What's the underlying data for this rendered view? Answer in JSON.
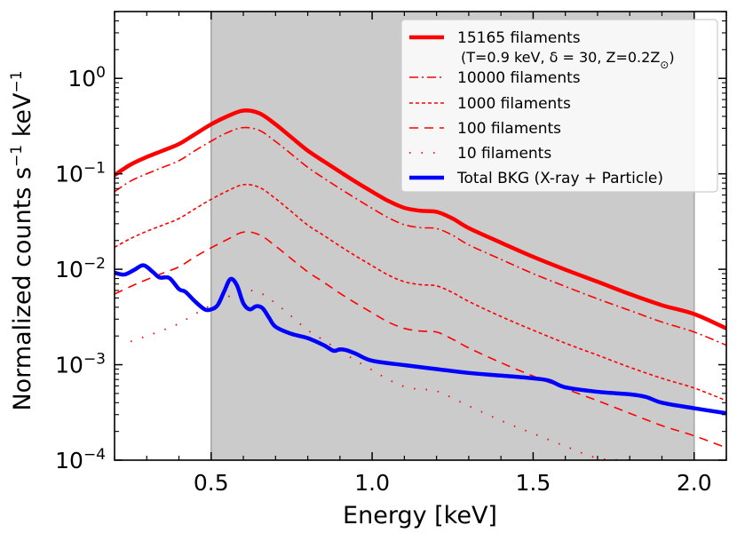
{
  "chart_data": {
    "type": "line",
    "xlabel": "Energy [keV]",
    "ylabel_main": "Normalized  counts s",
    "ylabel_sup1": "−1",
    "ylabel_unit": " keV",
    "ylabel_sup2": "−1",
    "xlim": [
      0.2,
      2.1
    ],
    "ylim_log10": [
      -4,
      0.7
    ],
    "shaded_band": {
      "x_start": 0.5,
      "x_end": 2.0,
      "color": "#cbcbcb"
    },
    "x_ticks": [
      {
        "value": 0.5,
        "label": "0.5"
      },
      {
        "value": 1.0,
        "label": "1.0"
      },
      {
        "value": 1.5,
        "label": "1.5"
      },
      {
        "value": 2.0,
        "label": "2.0"
      }
    ],
    "y_ticks": [
      {
        "exp": 0,
        "base": "10",
        "sup": "0"
      },
      {
        "exp": -1,
        "base": "10",
        "sup": "−1"
      },
      {
        "exp": -2,
        "base": "10",
        "sup": "−2"
      },
      {
        "exp": -3,
        "base": "10",
        "sup": "−3"
      },
      {
        "exp": -4,
        "base": "10",
        "sup": "−4"
      }
    ],
    "series": [
      {
        "name": "15165 filaments",
        "subtitle_prefix": "(T=0.9 keV, δ = 30, Z=0.2Z",
        "subtitle_sub": "⊙",
        "subtitle_suffix": ")",
        "color": "#ff0000",
        "width": 4.5,
        "dash": "",
        "x": [
          0.2,
          0.25,
          0.3,
          0.35,
          0.4,
          0.45,
          0.5,
          0.55,
          0.6,
          0.65,
          0.7,
          0.75,
          0.8,
          0.85,
          0.9,
          0.95,
          1.0,
          1.05,
          1.1,
          1.15,
          1.2,
          1.25,
          1.3,
          1.4,
          1.5,
          1.6,
          1.7,
          1.8,
          1.9,
          2.0,
          2.1
        ],
        "y": [
          0.097,
          0.125,
          0.15,
          0.175,
          0.205,
          0.26,
          0.33,
          0.4,
          0.46,
          0.43,
          0.33,
          0.24,
          0.175,
          0.135,
          0.105,
          0.082,
          0.065,
          0.052,
          0.044,
          0.041,
          0.04,
          0.034,
          0.027,
          0.019,
          0.0135,
          0.0099,
          0.0074,
          0.0055,
          0.0042,
          0.0034,
          0.0024
        ]
      },
      {
        "name": "10000 filaments",
        "color": "#ff0000",
        "width": 1.6,
        "dash": "10,4,2,4",
        "x": [
          0.2,
          0.25,
          0.3,
          0.35,
          0.4,
          0.45,
          0.5,
          0.55,
          0.6,
          0.65,
          0.7,
          0.75,
          0.8,
          0.85,
          0.9,
          0.95,
          1.0,
          1.05,
          1.1,
          1.15,
          1.2,
          1.25,
          1.3,
          1.4,
          1.5,
          1.6,
          1.7,
          1.8,
          1.9,
          2.0,
          2.1
        ],
        "y": [
          0.065,
          0.084,
          0.1,
          0.117,
          0.137,
          0.175,
          0.22,
          0.27,
          0.305,
          0.285,
          0.218,
          0.16,
          0.117,
          0.09,
          0.07,
          0.055,
          0.0434,
          0.0347,
          0.0293,
          0.0273,
          0.0267,
          0.0227,
          0.018,
          0.0127,
          0.009,
          0.0066,
          0.0049,
          0.0037,
          0.0028,
          0.0022,
          0.0016
        ]
      },
      {
        "name": "1000 filaments",
        "color": "#ff0000",
        "width": 1.6,
        "dash": "4,3",
        "x": [
          0.2,
          0.25,
          0.3,
          0.35,
          0.4,
          0.45,
          0.5,
          0.55,
          0.6,
          0.65,
          0.7,
          0.75,
          0.8,
          0.85,
          0.9,
          0.95,
          1.0,
          1.05,
          1.1,
          1.15,
          1.2,
          1.25,
          1.3,
          1.4,
          1.5,
          1.6,
          1.7,
          1.8,
          1.9,
          2.0,
          2.1
        ],
        "y": [
          0.017,
          0.021,
          0.025,
          0.029,
          0.034,
          0.043,
          0.054,
          0.066,
          0.077,
          0.072,
          0.055,
          0.04,
          0.029,
          0.0226,
          0.0175,
          0.0137,
          0.0109,
          0.0087,
          0.0074,
          0.0069,
          0.0067,
          0.0057,
          0.0046,
          0.0032,
          0.0023,
          0.00168,
          0.00126,
          0.00094,
          0.00072,
          0.00057,
          0.00042
        ]
      },
      {
        "name": "100 filaments",
        "color": "#ff0000",
        "width": 1.6,
        "dash": "10,7",
        "x": [
          0.2,
          0.25,
          0.3,
          0.35,
          0.4,
          0.45,
          0.5,
          0.55,
          0.6,
          0.65,
          0.7,
          0.75,
          0.8,
          0.85,
          0.9,
          0.95,
          1.0,
          1.05,
          1.1,
          1.15,
          1.2,
          1.25,
          1.3,
          1.4,
          1.5,
          1.6,
          1.7,
          1.8,
          1.9,
          2.0,
          2.1
        ],
        "y": [
          0.0055,
          0.0066,
          0.0078,
          0.0091,
          0.0106,
          0.0135,
          0.0168,
          0.0205,
          0.0245,
          0.023,
          0.0175,
          0.0128,
          0.0094,
          0.0073,
          0.0056,
          0.0044,
          0.0035,
          0.0028,
          0.0024,
          0.00225,
          0.0022,
          0.00185,
          0.0015,
          0.00105,
          0.00076,
          0.00056,
          0.00042,
          0.00031,
          0.00023,
          0.00018,
          0.000135
        ]
      },
      {
        "name": "10 filaments",
        "color": "#ff0000",
        "width": 1.8,
        "dash": "1.5,12",
        "x": [
          0.25,
          0.3,
          0.35,
          0.4,
          0.45,
          0.5,
          0.55,
          0.6,
          0.65,
          0.7,
          0.75,
          0.8,
          0.85,
          0.9,
          0.95,
          1.0,
          1.05,
          1.1,
          1.15,
          1.2,
          1.3,
          1.4,
          1.5,
          1.6,
          1.7,
          1.8
        ],
        "y": [
          0.00175,
          0.002,
          0.0023,
          0.0027,
          0.0034,
          0.0042,
          0.0051,
          0.006,
          0.0057,
          0.0044,
          0.0032,
          0.0023,
          0.0018,
          0.0014,
          0.0011,
          0.00088,
          0.0007,
          0.00059,
          0.00055,
          0.00053,
          0.00037,
          0.00026,
          0.00019,
          0.00014,
          0.000105,
          0.0001
        ]
      },
      {
        "name": "Total BKG (X-ray + Particle)",
        "color": "#0000ff",
        "width": 4.5,
        "dash": "",
        "x": [
          0.2,
          0.23,
          0.26,
          0.29,
          0.32,
          0.34,
          0.37,
          0.4,
          0.42,
          0.45,
          0.48,
          0.5,
          0.52,
          0.54,
          0.56,
          0.58,
          0.6,
          0.62,
          0.64,
          0.66,
          0.68,
          0.7,
          0.75,
          0.8,
          0.85,
          0.88,
          0.9,
          0.92,
          0.95,
          1.0,
          1.1,
          1.2,
          1.3,
          1.4,
          1.5,
          1.55,
          1.6,
          1.7,
          1.8,
          1.85,
          1.9,
          2.0,
          2.1
        ],
        "y": [
          0.0092,
          0.0088,
          0.0098,
          0.011,
          0.0093,
          0.0082,
          0.0081,
          0.0062,
          0.0058,
          0.0046,
          0.0038,
          0.0038,
          0.0042,
          0.0058,
          0.0079,
          0.0068,
          0.0044,
          0.0038,
          0.0041,
          0.0039,
          0.0031,
          0.0025,
          0.0021,
          0.0019,
          0.0016,
          0.0014,
          0.00145,
          0.00142,
          0.0013,
          0.0011,
          0.00099,
          0.0009,
          0.00082,
          0.00077,
          0.00072,
          0.00068,
          0.00058,
          0.00052,
          0.00049,
          0.00046,
          0.0004,
          0.00035,
          0.00031
        ]
      }
    ]
  }
}
